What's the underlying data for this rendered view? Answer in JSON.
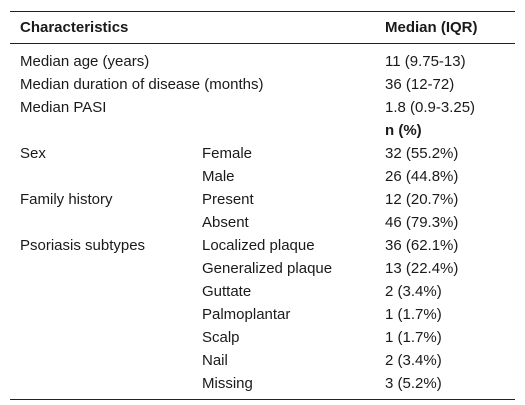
{
  "table": {
    "header": {
      "characteristics": "Characteristics",
      "median_iqr": "Median (IQR)"
    },
    "summary_rows": [
      {
        "label": "Median age (years)",
        "value": "11 (9.75-13)"
      },
      {
        "label": "Median duration of disease (months)",
        "value": "36 (12-72)"
      },
      {
        "label": "Median PASI",
        "value": "1.8 (0.9-3.25)"
      }
    ],
    "n_pct_header": "n (%)",
    "groups": {
      "sex": {
        "label": "Sex",
        "rows": [
          {
            "category": "Female",
            "value": "32 (55.2%)"
          },
          {
            "category": "Male",
            "value": "26 (44.8%)"
          }
        ]
      },
      "family_history": {
        "label": "Family history",
        "rows": [
          {
            "category": "Present",
            "value": "12 (20.7%)"
          },
          {
            "category": "Absent",
            "value": "46 (79.3%)"
          }
        ]
      },
      "subtypes": {
        "label": "Psoriasis subtypes",
        "rows": [
          {
            "category": "Localized plaque",
            "value": "36 (62.1%)"
          },
          {
            "category": "Generalized plaque",
            "value": "13 (22.4%)"
          },
          {
            "category": "Guttate",
            "value": "2 (3.4%)"
          },
          {
            "category": "Palmoplantar",
            "value": "1 (1.7%)"
          },
          {
            "category": "Scalp",
            "value": "1 (1.7%)"
          },
          {
            "category": "Nail",
            "value": "2 (3.4%)"
          },
          {
            "category": "Missing",
            "value": "3 (5.2%)"
          }
        ]
      }
    }
  }
}
